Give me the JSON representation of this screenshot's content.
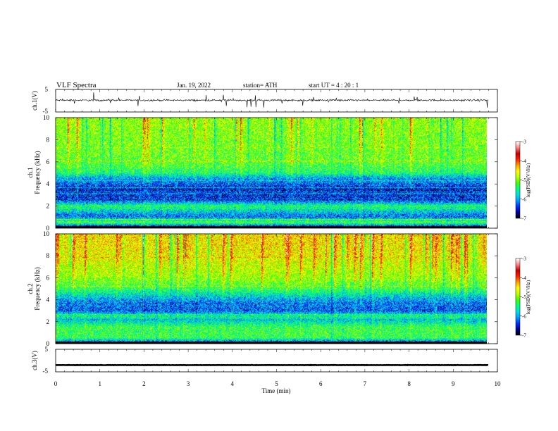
{
  "header": {
    "title": "VLF  Spectra",
    "date": "Jan. 19, 2022",
    "station": "station= ATH",
    "start_ut": "start  UT  =   4  : 20 : 1"
  },
  "colors": {
    "spectrum_scale": [
      "#000000",
      "#0000a0",
      "#0030ff",
      "#00a0ff",
      "#00e0e0",
      "#00ff80",
      "#40ff00",
      "#c0ff00",
      "#ffff00",
      "#ffa000",
      "#ff2000",
      "#c00000",
      "#ff8080",
      "#ffffff"
    ]
  },
  "chart_data": [
    {
      "type": "line",
      "name": "ch1-waveform",
      "ylabel": "ch.1(V)",
      "ylim": [
        -5,
        5
      ],
      "yticks": [
        "5",
        "-5"
      ],
      "xlim": [
        0,
        9.8
      ],
      "baseline_v": 0.2,
      "noise_v": 0.6,
      "spike_v": 3.5
    },
    {
      "type": "heatmap",
      "name": "ch1-spectrogram",
      "ylabel_top": "ch.1",
      "ylabel": "Frequency  (kHz)",
      "ylim": [
        0,
        10
      ],
      "yticks": [
        "0",
        "2",
        "4",
        "6",
        "8",
        "10"
      ],
      "xlim": [
        0,
        9.8
      ],
      "colorbar": {
        "label": "log(PSD)(V²/Hz)",
        "range": [
          -7,
          -3
        ],
        "ticks": [
          "-3",
          "-4",
          "-5",
          "-6",
          "-7"
        ]
      },
      "profile": [
        {
          "f": 0.0,
          "level": -6.8
        },
        {
          "f": 0.5,
          "level": -5.2
        },
        {
          "f": 1.0,
          "level": -6.2
        },
        {
          "f": 2.0,
          "level": -5.4
        },
        {
          "f": 2.5,
          "level": -6.4
        },
        {
          "f": 3.5,
          "level": -6.5
        },
        {
          "f": 4.5,
          "level": -6.0
        },
        {
          "f": 5.0,
          "level": -5.4
        },
        {
          "f": 6.0,
          "level": -5.1
        },
        {
          "f": 8.0,
          "level": -5.0
        },
        {
          "f": 10.0,
          "level": -4.9
        }
      ]
    },
    {
      "type": "heatmap",
      "name": "ch2-spectrogram",
      "ylabel_top": "ch.2",
      "ylabel": "Frequency  (kHz)",
      "ylim": [
        0,
        10
      ],
      "yticks": [
        "0",
        "2",
        "4",
        "6",
        "8",
        "10"
      ],
      "xlim": [
        0,
        9.8
      ],
      "colorbar": {
        "label": "log(PSD)(V²/Hz)",
        "range": [
          -7,
          -3
        ],
        "ticks": [
          "-3",
          "-4",
          "-5",
          "-6",
          "-7"
        ]
      },
      "profile": [
        {
          "f": 0.0,
          "level": -6.6
        },
        {
          "f": 0.5,
          "level": -5.3
        },
        {
          "f": 1.5,
          "level": -5.3
        },
        {
          "f": 2.2,
          "level": -5.9
        },
        {
          "f": 2.5,
          "level": -5.5
        },
        {
          "f": 3.0,
          "level": -6.3
        },
        {
          "f": 4.0,
          "level": -6.0
        },
        {
          "f": 5.0,
          "level": -5.3
        },
        {
          "f": 6.0,
          "level": -4.9
        },
        {
          "f": 8.0,
          "level": -4.6
        },
        {
          "f": 10.0,
          "level": -4.5
        }
      ]
    },
    {
      "type": "line",
      "name": "ch3-waveform",
      "ylabel": "ch.3(V)",
      "ylim": [
        -5,
        5
      ],
      "yticks": [
        "5",
        "-5"
      ],
      "xlim": [
        0,
        9.8
      ],
      "baseline_v": -2.0,
      "noise_v": 0.1,
      "spike_v": 0.0
    }
  ],
  "x_axis": {
    "label": "Time  (min)",
    "range": [
      0,
      10
    ],
    "ticks": [
      "0",
      "1",
      "2",
      "3",
      "4",
      "5",
      "6",
      "7",
      "8",
      "9",
      "10"
    ]
  }
}
